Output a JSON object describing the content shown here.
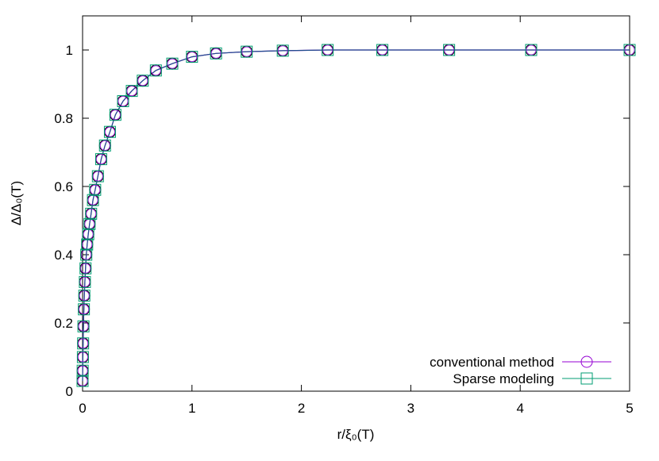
{
  "chart_data": {
    "type": "line",
    "xlabel": "r/ξ₀(T)",
    "ylabel": "Δ/Δ₀(T)",
    "xlim": [
      0,
      5
    ],
    "ylim": [
      0,
      1.1
    ],
    "x_ticks": [
      "0",
      "1",
      "2",
      "3",
      "4",
      "5"
    ],
    "y_ticks": [
      "0",
      "0.2",
      "0.4",
      "0.6",
      "0.8",
      "1"
    ],
    "grid": false,
    "legend_position": "bottom-right",
    "series": [
      {
        "name": "conventional method",
        "marker": "circle",
        "color": "#9400d3",
        "x": [
          0.0,
          0.001,
          0.003,
          0.005,
          0.008,
          0.012,
          0.016,
          0.021,
          0.027,
          0.034,
          0.042,
          0.052,
          0.064,
          0.078,
          0.095,
          0.115,
          0.14,
          0.17,
          0.205,
          0.25,
          0.3,
          0.37,
          0.45,
          0.55,
          0.67,
          0.82,
          1.0,
          1.22,
          1.5,
          1.83,
          2.24,
          2.74,
          3.35,
          4.1,
          5.0
        ],
        "y": [
          0.03,
          0.06,
          0.1,
          0.14,
          0.19,
          0.24,
          0.28,
          0.32,
          0.36,
          0.4,
          0.43,
          0.46,
          0.49,
          0.52,
          0.56,
          0.59,
          0.63,
          0.68,
          0.72,
          0.76,
          0.81,
          0.85,
          0.88,
          0.91,
          0.94,
          0.96,
          0.98,
          0.99,
          0.995,
          0.998,
          1.0,
          1.0,
          1.0,
          1.0,
          1.0
        ]
      },
      {
        "name": "Sparse modeling",
        "marker": "square",
        "color": "#009e73",
        "x": [
          0.0,
          0.001,
          0.003,
          0.005,
          0.008,
          0.012,
          0.016,
          0.021,
          0.027,
          0.034,
          0.042,
          0.052,
          0.064,
          0.078,
          0.095,
          0.115,
          0.14,
          0.17,
          0.205,
          0.25,
          0.3,
          0.37,
          0.45,
          0.55,
          0.67,
          0.82,
          1.0,
          1.22,
          1.5,
          1.83,
          2.24,
          2.74,
          3.35,
          4.1,
          5.0
        ],
        "y": [
          0.03,
          0.06,
          0.1,
          0.14,
          0.19,
          0.24,
          0.28,
          0.32,
          0.36,
          0.4,
          0.43,
          0.46,
          0.49,
          0.52,
          0.56,
          0.59,
          0.63,
          0.68,
          0.72,
          0.76,
          0.81,
          0.85,
          0.88,
          0.91,
          0.94,
          0.96,
          0.98,
          0.99,
          0.995,
          0.998,
          1.0,
          1.0,
          1.0,
          1.0,
          1.0
        ]
      }
    ],
    "curve_color": "#1f4e8c"
  }
}
